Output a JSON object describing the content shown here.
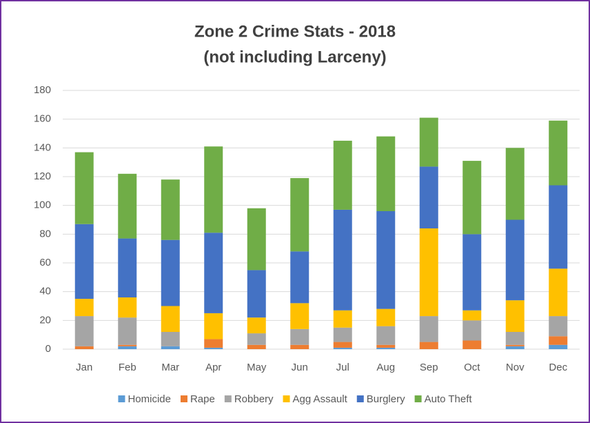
{
  "chart_data": {
    "type": "stacked_bar",
    "title": "Zone 2 Crime Stats - 2018",
    "subtitle": "(not including Larceny)",
    "categories": [
      "Jan",
      "Feb",
      "Mar",
      "Apr",
      "May",
      "Jun",
      "Jul",
      "Aug",
      "Sep",
      "Oct",
      "Nov",
      "Dec"
    ],
    "series": [
      {
        "name": "Homicide",
        "color": "#5b9bd5",
        "values": [
          0,
          2,
          2,
          1,
          0,
          0,
          1,
          1,
          0,
          0,
          2,
          3
        ]
      },
      {
        "name": "Rape",
        "color": "#ed7d31",
        "values": [
          2,
          1,
          0,
          6,
          3,
          3,
          4,
          2,
          5,
          6,
          1,
          6
        ]
      },
      {
        "name": "Robbery",
        "color": "#a5a5a5",
        "values": [
          21,
          19,
          10,
          0,
          8,
          11,
          10,
          13,
          18,
          14,
          9,
          14
        ]
      },
      {
        "name": "Agg Assault",
        "color": "#ffc000",
        "values": [
          12,
          14,
          18,
          18,
          11,
          18,
          12,
          12,
          61,
          7,
          22,
          33
        ]
      },
      {
        "name": "Burglery",
        "color": "#4472c4",
        "values": [
          52,
          41,
          46,
          56,
          33,
          36,
          70,
          68,
          43,
          53,
          56,
          58
        ]
      },
      {
        "name": "Auto Theft",
        "color": "#70ad47",
        "values": [
          50,
          45,
          42,
          60,
          43,
          51,
          48,
          52,
          34,
          51,
          50,
          45
        ]
      }
    ],
    "ylim": [
      0,
      180
    ],
    "yticks": [
      0,
      20,
      40,
      60,
      80,
      100,
      120,
      140,
      160,
      180
    ],
    "grid": true,
    "legend": "bottom"
  }
}
